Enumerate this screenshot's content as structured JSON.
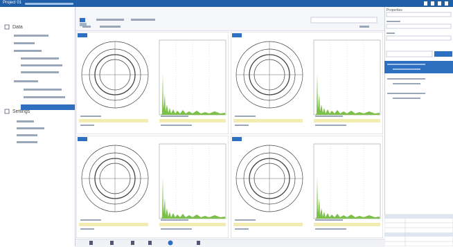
{
  "header": {
    "title": "Project 01"
  },
  "tree": {
    "items": [
      "Data",
      "Settings"
    ]
  },
  "panel": {
    "title": "Properties"
  }
}
